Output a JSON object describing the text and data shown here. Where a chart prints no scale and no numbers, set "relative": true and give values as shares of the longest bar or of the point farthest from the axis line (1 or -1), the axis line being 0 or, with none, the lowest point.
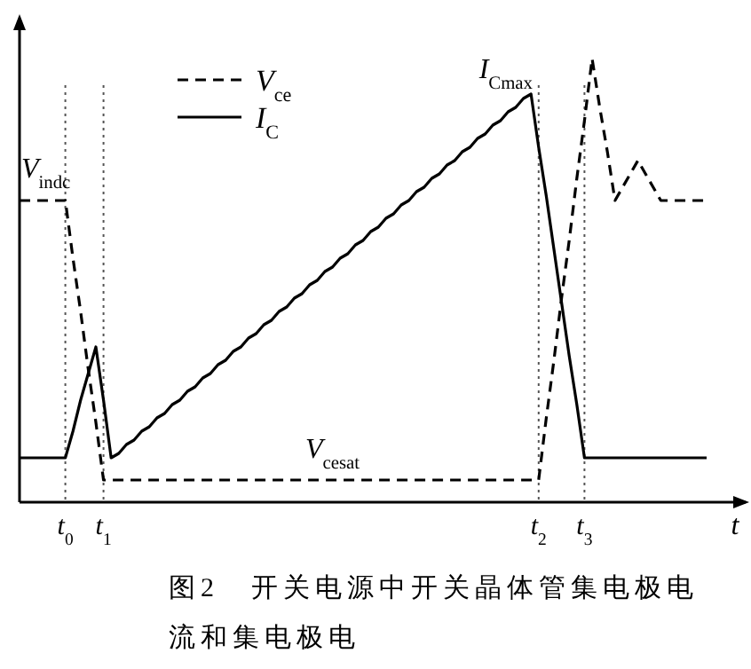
{
  "chart_data": {
    "type": "line",
    "relative": true,
    "title": "图2　开关电源中开关晶体管集电极电流和集电极电",
    "xlabel": "t",
    "categories": [
      null,
      null,
      null,
      null,
      null,
      null,
      "t$_{0}$",
      null,
      null,
      null,
      null,
      "t$_{1}$",
      null,
      null,
      null,
      null,
      null,
      null,
      null,
      null,
      null,
      null,
      null,
      null,
      null,
      null,
      null,
      null,
      null,
      null,
      null,
      null,
      null,
      null,
      null,
      null,
      null,
      null,
      null,
      null,
      null,
      null,
      null,
      null,
      null,
      null,
      null,
      null,
      null,
      null,
      null,
      null,
      null,
      null,
      null,
      null,
      null,
      null,
      null,
      null,
      null,
      null,
      null,
      null,
      null,
      null,
      null,
      null,
      "t$_{2}$",
      null,
      null,
      null,
      null,
      null,
      "t$_{3}$",
      null,
      null,
      null,
      null,
      null,
      null,
      null,
      null,
      null,
      null,
      null,
      null,
      null,
      null,
      null,
      null
    ],
    "legend": "top left",
    "series": [
      {
        "name": "V$_{ce}$",
        "color": "#000000",
        "line_style": "dashed",
        "values": [
          0.68,
          0.68,
          0.68,
          0.68,
          0.68,
          0.68,
          0.68,
          0.55,
          0.43,
          0.3,
          0.18,
          0.05,
          0.05,
          0.05,
          0.05,
          0.05,
          0.05,
          0.05,
          0.05,
          0.05,
          0.05,
          0.05,
          0.05,
          0.05,
          0.05,
          0.05,
          0.05,
          0.05,
          0.05,
          0.05,
          0.05,
          0.05,
          0.05,
          0.05,
          0.05,
          0.05,
          0.05,
          0.05,
          0.05,
          0.05,
          0.05,
          0.05,
          0.05,
          0.05,
          0.05,
          0.05,
          0.05,
          0.05,
          0.05,
          0.05,
          0.05,
          0.05,
          0.05,
          0.05,
          0.05,
          0.05,
          0.05,
          0.05,
          0.05,
          0.05,
          0.05,
          0.05,
          0.05,
          0.05,
          0.05,
          0.05,
          0.05,
          0.05,
          0.05,
          0.19,
          0.32,
          0.46,
          0.59,
          0.73,
          0.86,
          1.0,
          0.89,
          0.79,
          0.68,
          0.71,
          0.74,
          0.77,
          0.74,
          0.71,
          0.68,
          0.68,
          0.68,
          0.68,
          0.68,
          0.68,
          0.68
        ]
      },
      {
        "name": "I$_{C}$",
        "color": "#000000",
        "line_style": "solid",
        "values": [
          0.1,
          0.1,
          0.1,
          0.1,
          0.1,
          0.1,
          0.1,
          0.16,
          0.23,
          0.29,
          0.35,
          0.23,
          0.1,
          0.11,
          0.13,
          0.14,
          0.16,
          0.17,
          0.19,
          0.2,
          0.22,
          0.23,
          0.25,
          0.26,
          0.28,
          0.29,
          0.31,
          0.32,
          0.34,
          0.35,
          0.37,
          0.38,
          0.4,
          0.41,
          0.43,
          0.44,
          0.46,
          0.47,
          0.49,
          0.5,
          0.52,
          0.53,
          0.55,
          0.56,
          0.58,
          0.59,
          0.61,
          0.62,
          0.64,
          0.65,
          0.67,
          0.68,
          0.7,
          0.71,
          0.73,
          0.74,
          0.76,
          0.77,
          0.79,
          0.8,
          0.82,
          0.83,
          0.85,
          0.86,
          0.88,
          0.89,
          0.91,
          0.92,
          0.8,
          0.69,
          0.57,
          0.45,
          0.33,
          0.22,
          0.1,
          0.1,
          0.1,
          0.1,
          0.1,
          0.1,
          0.1,
          0.1,
          0.1,
          0.1,
          0.1,
          0.1,
          0.1,
          0.1,
          0.1,
          0.1,
          0.1
        ]
      }
    ],
    "ref_lines": [
      {
        "axis": "x",
        "value": "t$_{0}$",
        "color": "#555555",
        "line_style": "dotted"
      },
      {
        "axis": "x",
        "value": "t$_{1}$",
        "color": "#555555",
        "line_style": "dotted"
      },
      {
        "axis": "x",
        "value": "t$_{2}$",
        "color": "#555555",
        "line_style": "dotted"
      },
      {
        "axis": "x",
        "value": "t$_{3}$",
        "color": "#555555",
        "line_style": "dotted"
      }
    ],
    "annotations": [
      "V$_{indc}$",
      "I$_{Cmax}$",
      "V$_{cesat}$"
    ]
  }
}
